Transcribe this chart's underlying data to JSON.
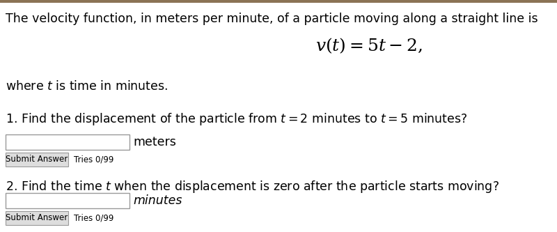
{
  "background_color": "#ffffff",
  "top_border_color": "#8B7355",
  "title_text": "The velocity function, in meters per minute, of a particle moving along a straight line is",
  "formula": "$v(t) = 5t - 2,$",
  "where_text": "where $t$ is time in minutes.",
  "q1_text": "1. Find the displacement of the particle from $t = 2$ minutes to $t = 5$ minutes?",
  "q1_unit": "meters",
  "q1_button": "Submit Answer",
  "q1_tries": "Tries 0/99",
  "q2_text": "2. Find the time $t$ when the displacement is zero after the particle starts moving?",
  "q2_unit": "minutes",
  "q2_button": "Submit Answer",
  "q2_tries": "Tries 0/99",
  "input_box_color": "#ffffff",
  "input_box_edge": "#999999",
  "button_color": "#dddddd",
  "button_edge": "#999999",
  "text_color": "#000000",
  "font_size_main": 12.5,
  "font_size_formula": 18
}
